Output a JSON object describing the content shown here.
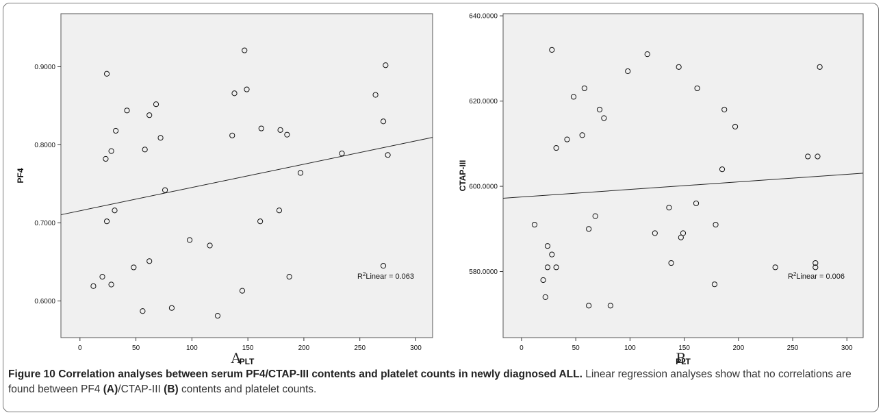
{
  "chart_data": [
    {
      "type": "scatter",
      "panel": "A",
      "xlabel": "PLT",
      "ylabel": "PF4",
      "xlim": [
        -17,
        315
      ],
      "ylim": [
        0.553,
        0.968
      ],
      "xticks": [
        0,
        50,
        100,
        150,
        200,
        250,
        300
      ],
      "yticks": [
        0.6,
        0.7,
        0.8,
        0.9
      ],
      "ytick_labels": [
        "0.6000",
        "0.7000",
        "0.8000",
        "0.9000"
      ],
      "fit_line": {
        "intercept": 0.7155,
        "slope": 0.0002985
      },
      "r2_label": "Linear = 0.063",
      "points": [
        {
          "x": 12,
          "y": 0.619
        },
        {
          "x": 20,
          "y": 0.631
        },
        {
          "x": 23,
          "y": 0.782
        },
        {
          "x": 24,
          "y": 0.891
        },
        {
          "x": 24,
          "y": 0.702
        },
        {
          "x": 28,
          "y": 0.792
        },
        {
          "x": 28,
          "y": 0.621
        },
        {
          "x": 31,
          "y": 0.716
        },
        {
          "x": 32,
          "y": 0.818
        },
        {
          "x": 42,
          "y": 0.844
        },
        {
          "x": 48,
          "y": 0.643
        },
        {
          "x": 56,
          "y": 0.587
        },
        {
          "x": 58,
          "y": 0.794
        },
        {
          "x": 62,
          "y": 0.838
        },
        {
          "x": 62,
          "y": 0.651
        },
        {
          "x": 68,
          "y": 0.852
        },
        {
          "x": 72,
          "y": 0.809
        },
        {
          "x": 76,
          "y": 0.742
        },
        {
          "x": 82,
          "y": 0.591
        },
        {
          "x": 98,
          "y": 0.678
        },
        {
          "x": 116,
          "y": 0.671
        },
        {
          "x": 123,
          "y": 0.581
        },
        {
          "x": 136,
          "y": 0.812
        },
        {
          "x": 138,
          "y": 0.866
        },
        {
          "x": 145,
          "y": 0.613
        },
        {
          "x": 147,
          "y": 0.921
        },
        {
          "x": 149,
          "y": 0.871
        },
        {
          "x": 161,
          "y": 0.702
        },
        {
          "x": 162,
          "y": 0.821
        },
        {
          "x": 178,
          "y": 0.716
        },
        {
          "x": 179,
          "y": 0.819
        },
        {
          "x": 185,
          "y": 0.813
        },
        {
          "x": 187,
          "y": 0.631
        },
        {
          "x": 197,
          "y": 0.764
        },
        {
          "x": 234,
          "y": 0.789
        },
        {
          "x": 264,
          "y": 0.864
        },
        {
          "x": 271,
          "y": 0.83
        },
        {
          "x": 271,
          "y": 0.645
        },
        {
          "x": 273,
          "y": 0.902
        },
        {
          "x": 275,
          "y": 0.787
        }
      ]
    },
    {
      "type": "scatter",
      "panel": "B",
      "xlabel": "PLT",
      "ylabel": "CTAP-III",
      "xlim": [
        -17,
        315
      ],
      "ylim": [
        564.5,
        640.5
      ],
      "xticks": [
        0,
        50,
        100,
        150,
        200,
        250,
        300
      ],
      "yticks": [
        580,
        600,
        620,
        640
      ],
      "ytick_labels": [
        "580.0000",
        "600.0000",
        "620.0000",
        "640.0000"
      ],
      "fit_line": {
        "intercept": 597.5,
        "slope": 0.0177
      },
      "r2_label": "Linear = 0.006",
      "points": [
        {
          "x": 12,
          "y": 591
        },
        {
          "x": 20,
          "y": 578
        },
        {
          "x": 22,
          "y": 574
        },
        {
          "x": 24,
          "y": 586
        },
        {
          "x": 24,
          "y": 581
        },
        {
          "x": 28,
          "y": 584
        },
        {
          "x": 28,
          "y": 632
        },
        {
          "x": 32,
          "y": 609
        },
        {
          "x": 32,
          "y": 581
        },
        {
          "x": 42,
          "y": 611
        },
        {
          "x": 48,
          "y": 621
        },
        {
          "x": 56,
          "y": 612
        },
        {
          "x": 58,
          "y": 623
        },
        {
          "x": 62,
          "y": 590
        },
        {
          "x": 62,
          "y": 572
        },
        {
          "x": 68,
          "y": 593
        },
        {
          "x": 72,
          "y": 618
        },
        {
          "x": 76,
          "y": 616
        },
        {
          "x": 82,
          "y": 572
        },
        {
          "x": 98,
          "y": 627
        },
        {
          "x": 116,
          "y": 631
        },
        {
          "x": 123,
          "y": 589
        },
        {
          "x": 136,
          "y": 595
        },
        {
          "x": 138,
          "y": 582
        },
        {
          "x": 145,
          "y": 628
        },
        {
          "x": 147,
          "y": 588
        },
        {
          "x": 149,
          "y": 589
        },
        {
          "x": 161,
          "y": 596
        },
        {
          "x": 162,
          "y": 623
        },
        {
          "x": 178,
          "y": 577
        },
        {
          "x": 179,
          "y": 591
        },
        {
          "x": 185,
          "y": 604
        },
        {
          "x": 187,
          "y": 618
        },
        {
          "x": 197,
          "y": 614
        },
        {
          "x": 234,
          "y": 581
        },
        {
          "x": 264,
          "y": 607
        },
        {
          "x": 271,
          "y": 582
        },
        {
          "x": 271,
          "y": 581
        },
        {
          "x": 273,
          "y": 607
        },
        {
          "x": 275,
          "y": 628
        }
      ]
    }
  ],
  "caption": {
    "title": "Figure 10 Correlation analyses between serum PF4/CTAP-III contents and platelet counts in newly diagnosed ALL.",
    "text_1": "Linear regression analyses show that no correlations are found between PF4 ",
    "ref_a": "(A)",
    "text_2": "/CTAP-III ",
    "ref_b": "(B)",
    "text_3": " contents and platelet counts."
  }
}
